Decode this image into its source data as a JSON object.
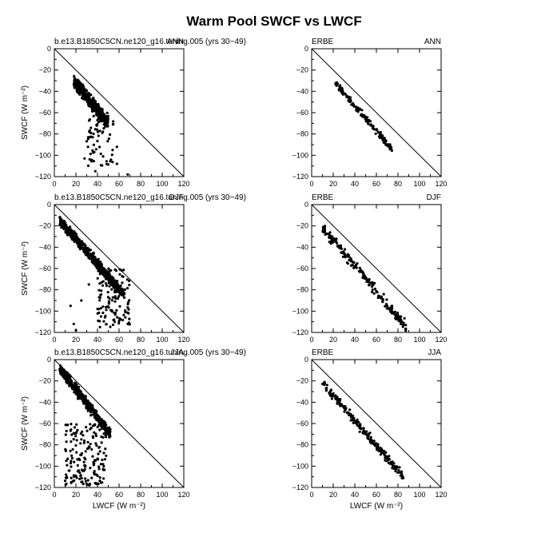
{
  "figure": {
    "title": "Warm Pool SWCF vs LWCF"
  },
  "axes": {
    "xlabel": "LWCF (W m⁻²)",
    "ylabel": "SWCF (W m⁻²)",
    "x_ticks": [
      "0",
      "20",
      "40",
      "60",
      "80",
      "100",
      "120"
    ],
    "y_ticks": [
      "0",
      "−20",
      "−40",
      "−60",
      "−80",
      "−100",
      "−120"
    ]
  },
  "chart_data": [
    {
      "type": "scatter",
      "row": 0,
      "col": 0,
      "left_label": "b.e13.B1850C5CN.ne120_g16.tuning.005 (yrs 30−49)",
      "right_label": "ANN",
      "xlim": [
        0,
        120
      ],
      "ylim": [
        -120,
        0
      ],
      "reference_line": "y = -x",
      "x_ticks": [
        "0",
        "20",
        "40",
        "60",
        "80",
        "100",
        "120"
      ],
      "y_ticks": [
        "0",
        "−20",
        "−40",
        "−60",
        "−80",
        "−100",
        "−120"
      ],
      "ylabel": "SWCF (W m⁻²)",
      "xlabel": "",
      "clusters": [
        {
          "x_range": [
            18,
            50
          ],
          "y_range": [
            -70,
            -30
          ],
          "n": 500,
          "along_line": true,
          "spread": 14
        },
        {
          "x_range": [
            30,
            55
          ],
          "y_range": [
            -110,
            -60
          ],
          "n": 70,
          "along_line": false,
          "spread": 0
        }
      ],
      "points": [
        [
          68,
          -118
        ],
        [
          54,
          -95
        ],
        [
          58,
          -92
        ],
        [
          58,
          -108
        ],
        [
          28,
          -103
        ],
        [
          38,
          -115
        ]
      ]
    },
    {
      "type": "scatter",
      "row": 0,
      "col": 1,
      "left_label": "ERBE",
      "right_label": "ANN",
      "xlim": [
        0,
        120
      ],
      "ylim": [
        -120,
        0
      ],
      "reference_line": "y = -x",
      "x_ticks": [
        "0",
        "20",
        "40",
        "60",
        "80",
        "100",
        "120"
      ],
      "y_ticks": [
        "0",
        "−20",
        "−40",
        "−60",
        "−80",
        "−100",
        "−120"
      ],
      "ylabel": "",
      "xlabel": "",
      "clusters": [
        {
          "x_range": [
            22,
            75
          ],
          "y_range": [
            -95,
            -33
          ],
          "n": 150,
          "along_line": true,
          "spread": 8
        }
      ],
      "points": []
    },
    {
      "type": "scatter",
      "row": 1,
      "col": 0,
      "left_label": "b.e13.B1850C5CN.ne120_g16.tuning.005 (yrs 30−49)",
      "right_label": "DJF",
      "xlim": [
        0,
        120
      ],
      "ylim": [
        -120,
        0
      ],
      "reference_line": "y = -x",
      "x_ticks": [
        "0",
        "20",
        "40",
        "60",
        "80",
        "100",
        "120"
      ],
      "y_ticks": [
        "0",
        "−20",
        "−40",
        "−60",
        "−80",
        "−100",
        "−120"
      ],
      "ylabel": "SWCF (W m⁻²)",
      "xlabel": "",
      "clusters": [
        {
          "x_range": [
            5,
            65
          ],
          "y_range": [
            -85,
            -15
          ],
          "n": 650,
          "along_line": true,
          "spread": 12
        },
        {
          "x_range": [
            40,
            70
          ],
          "y_range": [
            -115,
            -60
          ],
          "n": 120,
          "along_line": false,
          "spread": 0
        }
      ],
      "points": [
        [
          18,
          -112
        ],
        [
          20,
          -118
        ],
        [
          15,
          -95
        ],
        [
          25,
          -90
        ],
        [
          32,
          -75
        ]
      ]
    },
    {
      "type": "scatter",
      "row": 1,
      "col": 1,
      "left_label": "ERBE",
      "right_label": "DJF",
      "xlim": [
        0,
        120
      ],
      "ylim": [
        -120,
        0
      ],
      "reference_line": "y = -x",
      "x_ticks": [
        "0",
        "20",
        "40",
        "60",
        "80",
        "100",
        "120"
      ],
      "y_ticks": [
        "0",
        "−20",
        "−40",
        "−60",
        "−80",
        "−100",
        "−120"
      ],
      "ylabel": "",
      "xlabel": "",
      "clusters": [
        {
          "x_range": [
            10,
            88
          ],
          "y_range": [
            -115,
            -22
          ],
          "n": 200,
          "along_line": true,
          "spread": 12
        }
      ],
      "points": []
    },
    {
      "type": "scatter",
      "row": 2,
      "col": 0,
      "left_label": "b.e13.B1850C5CN.ne120_g16.tuning.005 (yrs 30−49)",
      "right_label": "JJA",
      "xlim": [
        0,
        120
      ],
      "ylim": [
        -120,
        0
      ],
      "reference_line": "y = -x",
      "x_ticks": [
        "0",
        "20",
        "40",
        "60",
        "80",
        "100",
        "120"
      ],
      "y_ticks": [
        "0",
        "−20",
        "−40",
        "−60",
        "−80",
        "−100",
        "−120"
      ],
      "ylabel": "SWCF (W m⁻²)",
      "xlabel": "LWCF (W m⁻²)",
      "clusters": [
        {
          "x_range": [
            5,
            52
          ],
          "y_range": [
            -70,
            -8
          ],
          "n": 450,
          "along_line": true,
          "spread": 12
        },
        {
          "x_range": [
            10,
            48
          ],
          "y_range": [
            -118,
            -60
          ],
          "n": 180,
          "along_line": false,
          "spread": 0
        }
      ],
      "points": []
    },
    {
      "type": "scatter",
      "row": 2,
      "col": 1,
      "left_label": "ERBE",
      "right_label": "JJA",
      "xlim": [
        0,
        120
      ],
      "ylim": [
        -120,
        0
      ],
      "reference_line": "y = -x",
      "x_ticks": [
        "0",
        "20",
        "40",
        "60",
        "80",
        "100",
        "120"
      ],
      "y_ticks": [
        "0",
        "−20",
        "−40",
        "−60",
        "−80",
        "−100",
        "−120"
      ],
      "ylabel": "",
      "xlabel": "LWCF (W m⁻²)",
      "clusters": [
        {
          "x_range": [
            10,
            85
          ],
          "y_range": [
            -110,
            -22
          ],
          "n": 220,
          "along_line": true,
          "spread": 10
        }
      ],
      "points": []
    }
  ]
}
